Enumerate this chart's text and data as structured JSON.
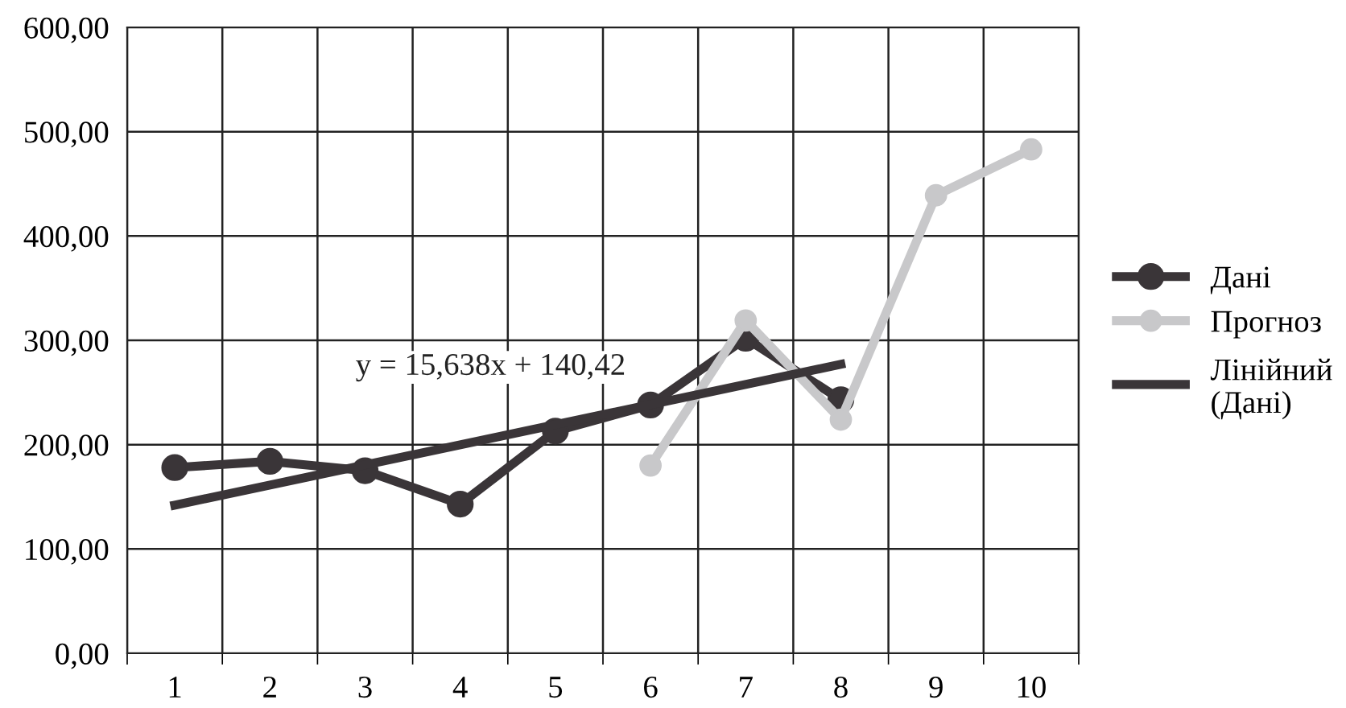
{
  "chart_data": {
    "type": "line",
    "categories": [
      "1",
      "2",
      "3",
      "4",
      "5",
      "6",
      "7",
      "8",
      "9",
      "10"
    ],
    "series": [
      {
        "name": "Дані",
        "color": "#3a3538",
        "marker": "circle",
        "values": [
          178,
          184,
          175,
          143,
          213,
          238,
          302,
          243,
          null,
          null
        ]
      },
      {
        "name": "Прогноз",
        "color": "#c8c8ca",
        "marker": "circle",
        "values": [
          null,
          null,
          null,
          null,
          null,
          180,
          319,
          224,
          439,
          483
        ]
      },
      {
        "name": "Лінійний (Дані)",
        "color": "#3a3538",
        "marker": "none",
        "x": [
          "1",
          "8"
        ],
        "values": [
          142,
          277
        ]
      }
    ],
    "ylim": [
      0,
      600
    ],
    "yticks": [
      {
        "value": 0,
        "label": "0,00"
      },
      {
        "value": 100,
        "label": "100,00"
      },
      {
        "value": 200,
        "label": "200,00"
      },
      {
        "value": 300,
        "label": "300,00"
      },
      {
        "value": 400,
        "label": "400,00"
      },
      {
        "value": 500,
        "label": "500,00"
      },
      {
        "value": 600,
        "label": "600,00"
      }
    ],
    "annotations": [
      "y = 15,638x + 140,42"
    ],
    "grid": true,
    "legend": "right",
    "line_style": "solid"
  }
}
